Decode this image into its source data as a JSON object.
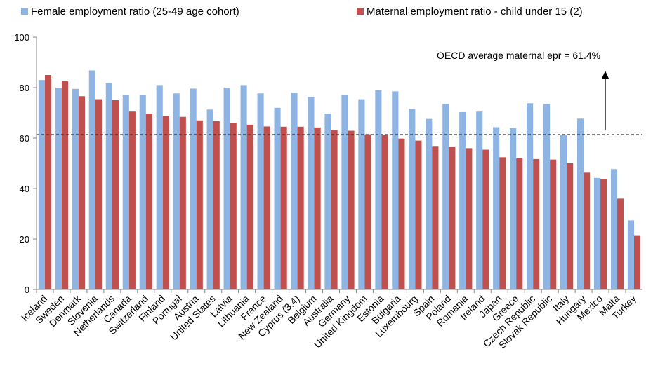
{
  "chart_data": {
    "type": "bar",
    "title": "",
    "xlabel": "",
    "ylabel": "",
    "ylim": [
      0,
      100
    ],
    "yticks": [
      0,
      20,
      40,
      60,
      80,
      100
    ],
    "grid": false,
    "legend_position": "top",
    "categories": [
      "Iceland",
      "Sweden",
      "Denmark",
      "Slovenia",
      "Netherlands",
      "Canada",
      "Switzerland",
      "Finland",
      "Portugal",
      "Austria",
      "United States",
      "Latvia",
      "Lithuania",
      "France",
      "New Zealand",
      "Cyprus (3,4)",
      "Belgium",
      "Australia",
      "Germany",
      "United Kingdom",
      "Estonia",
      "Bulgaria",
      "Luxembourg",
      "Spain",
      "Poland",
      "Romania",
      "Ireland",
      "Japan",
      "Greece",
      "Czech Republic",
      "Slovak Republic",
      "Italy",
      "Hungary",
      "Mexico",
      "Malta",
      "Turkey"
    ],
    "series": [
      {
        "name": "Female employment ratio (25-49 age cohort)",
        "color": "#8DB4E2",
        "values": [
          83,
          80,
          79.5,
          86.8,
          81.8,
          77,
          77,
          81,
          77.7,
          79.6,
          71.3,
          80,
          81,
          77.7,
          72,
          78,
          76.3,
          69.7,
          77,
          75.4,
          79,
          78.5,
          71.6,
          67.6,
          73.5,
          70.3,
          70.5,
          64.3,
          64,
          73.8,
          73.5,
          61.2,
          67.7,
          44.2,
          47.7,
          27.4
        ]
      },
      {
        "name": "Maternal employment ratio - child under 15 (2)",
        "color": "#C0504D",
        "values": [
          85,
          82.5,
          76.6,
          75.4,
          75,
          70.5,
          69.7,
          68.7,
          68.4,
          67,
          66.7,
          66,
          65.3,
          64.6,
          64.5,
          64.5,
          64.2,
          63.2,
          62.9,
          61.5,
          61.2,
          59.8,
          59,
          56.6,
          56.4,
          56,
          55.4,
          52.4,
          52,
          51.7,
          51.5,
          50,
          46.3,
          43.6,
          36,
          21.5
        ]
      }
    ],
    "reference_line": {
      "value": 61.4,
      "label": "OECD average maternal  epr = 61.4%",
      "style": "dashed"
    }
  }
}
